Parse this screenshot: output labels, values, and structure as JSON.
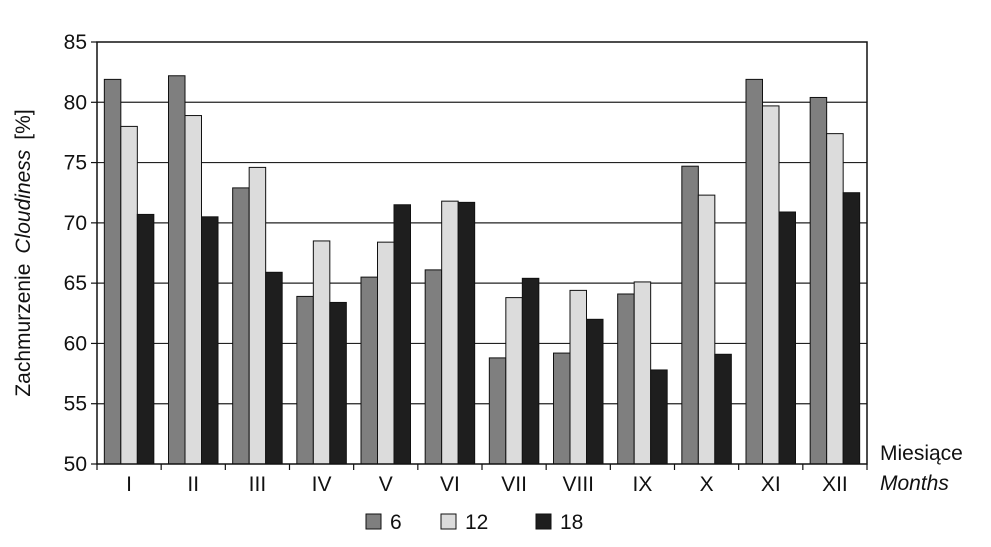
{
  "chart_data": {
    "type": "bar",
    "categories": [
      "I",
      "II",
      "III",
      "IV",
      "V",
      "VI",
      "VII",
      "VIII",
      "IX",
      "X",
      "XI",
      "XII"
    ],
    "series": [
      {
        "name": "6",
        "color": "#7f7f7f",
        "values": [
          81.9,
          82.2,
          72.9,
          63.9,
          65.5,
          66.1,
          58.8,
          59.2,
          64.1,
          74.7,
          81.9,
          80.4
        ]
      },
      {
        "name": "12",
        "color": "#dcdcdc",
        "values": [
          78.0,
          78.9,
          74.6,
          68.5,
          68.4,
          71.8,
          63.8,
          64.4,
          65.1,
          72.3,
          79.7,
          77.4
        ]
      },
      {
        "name": "18",
        "color": "#1e1e1e",
        "values": [
          70.7,
          70.5,
          65.9,
          63.4,
          71.5,
          71.7,
          65.4,
          62.0,
          57.8,
          59.1,
          70.9,
          72.5
        ]
      }
    ],
    "ylim": [
      50,
      85
    ],
    "yticks": [
      50,
      55,
      60,
      65,
      70,
      75,
      80,
      85
    ],
    "ylabel_plain": "Zachmurzenie",
    "ylabel_italic": "Cloudiness",
    "ylabel_unit": "[%]",
    "xlabel_line1": "Miesiące",
    "xlabel_line2": "Months",
    "grid": "horizontal",
    "legend_position": "bottom-center"
  }
}
